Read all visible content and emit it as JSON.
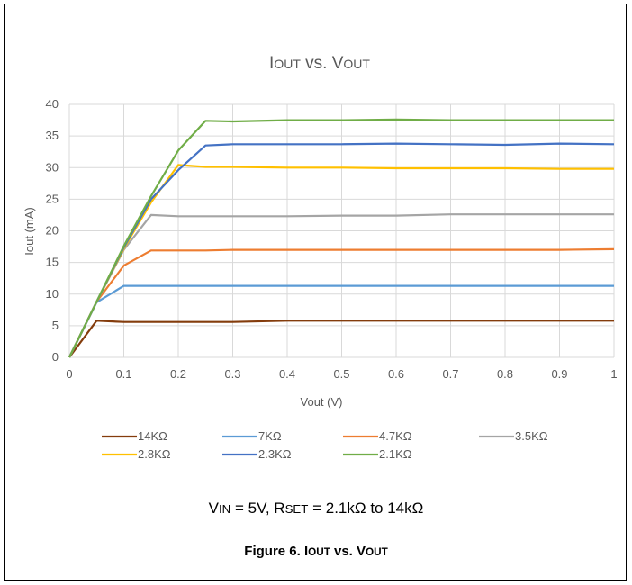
{
  "chart_data": {
    "type": "line",
    "title": "IOUT vs. VOUT",
    "title_main": "I",
    "title_sub1": "OUT",
    "title_mid": " vs. V",
    "title_sub2": "OUT",
    "xlabel": "Vout (V)",
    "ylabel": "Iout (mA)",
    "xlim": [
      0,
      1
    ],
    "ylim": [
      0,
      40
    ],
    "x_ticks": [
      "0",
      "0.1",
      "0.2",
      "0.3",
      "0.4",
      "0.5",
      "0.6",
      "0.7",
      "0.8",
      "0.9",
      "1"
    ],
    "y_ticks": [
      "0",
      "5",
      "10",
      "15",
      "20",
      "25",
      "30",
      "35",
      "40"
    ],
    "grid": true,
    "legend_position": "bottom",
    "series": [
      {
        "name": "14KΩ",
        "color": "#843C0C",
        "x": [
          0,
          0.05,
          0.1,
          0.2,
          0.3,
          0.4,
          0.5,
          0.6,
          0.7,
          0.8,
          0.9,
          1
        ],
        "values": [
          0,
          5.8,
          5.6,
          5.6,
          5.6,
          5.8,
          5.8,
          5.8,
          5.8,
          5.8,
          5.8,
          5.8
        ]
      },
      {
        "name": "7KΩ",
        "color": "#5B9BD5",
        "x": [
          0,
          0.05,
          0.1,
          0.2,
          0.3,
          0.4,
          0.5,
          0.6,
          0.7,
          0.8,
          0.9,
          1
        ],
        "values": [
          0,
          8.7,
          11.3,
          11.3,
          11.3,
          11.3,
          11.3,
          11.3,
          11.3,
          11.3,
          11.3,
          11.3
        ]
      },
      {
        "name": "4.7KΩ",
        "color": "#ED7D31",
        "x": [
          0,
          0.05,
          0.1,
          0.15,
          0.2,
          0.25,
          0.3,
          0.4,
          0.5,
          0.6,
          0.7,
          0.8,
          0.9,
          1
        ],
        "values": [
          0,
          8.8,
          14.5,
          16.9,
          16.9,
          16.9,
          17.0,
          17.0,
          17.0,
          17.0,
          17.0,
          17.0,
          17.0,
          17.1
        ]
      },
      {
        "name": "3.5KΩ",
        "color": "#A5A5A5",
        "x": [
          0,
          0.05,
          0.1,
          0.15,
          0.2,
          0.3,
          0.4,
          0.5,
          0.6,
          0.7,
          0.8,
          0.9,
          1
        ],
        "values": [
          0,
          8.8,
          17.0,
          22.5,
          22.3,
          22.3,
          22.3,
          22.4,
          22.4,
          22.6,
          22.6,
          22.6,
          22.6
        ]
      },
      {
        "name": "2.8KΩ",
        "color": "#FFC000",
        "x": [
          0,
          0.05,
          0.1,
          0.15,
          0.2,
          0.25,
          0.3,
          0.4,
          0.5,
          0.6,
          0.7,
          0.8,
          0.9,
          1
        ],
        "values": [
          0,
          8.8,
          17.2,
          24.5,
          30.4,
          30.1,
          30.1,
          30.0,
          30.0,
          29.9,
          29.9,
          29.9,
          29.8,
          29.8
        ]
      },
      {
        "name": "2.3KΩ",
        "color": "#4472C4",
        "x": [
          0,
          0.05,
          0.1,
          0.15,
          0.2,
          0.25,
          0.3,
          0.4,
          0.5,
          0.6,
          0.7,
          0.8,
          0.9,
          1
        ],
        "values": [
          0,
          8.8,
          17.4,
          25.0,
          29.6,
          33.5,
          33.7,
          33.7,
          33.7,
          33.8,
          33.7,
          33.6,
          33.8,
          33.7
        ]
      },
      {
        "name": "2.1KΩ",
        "color": "#70AD47",
        "x": [
          0,
          0.05,
          0.1,
          0.15,
          0.2,
          0.25,
          0.3,
          0.4,
          0.5,
          0.6,
          0.7,
          0.8,
          0.9,
          1
        ],
        "values": [
          0,
          8.8,
          17.6,
          25.5,
          32.7,
          37.4,
          37.3,
          37.5,
          37.5,
          37.6,
          37.5,
          37.5,
          37.5,
          37.5
        ]
      }
    ]
  },
  "conditions": {
    "v": "V",
    "v_sub": "IN",
    "v_rest": " = 5V, R",
    "r_sub": "SET",
    "r_rest": " = 2.1kΩ to 14kΩ"
  },
  "caption": {
    "prefix": "Figure 6. I",
    "sub1": "OUT",
    "mid": " vs. V",
    "sub2": "OUT"
  }
}
